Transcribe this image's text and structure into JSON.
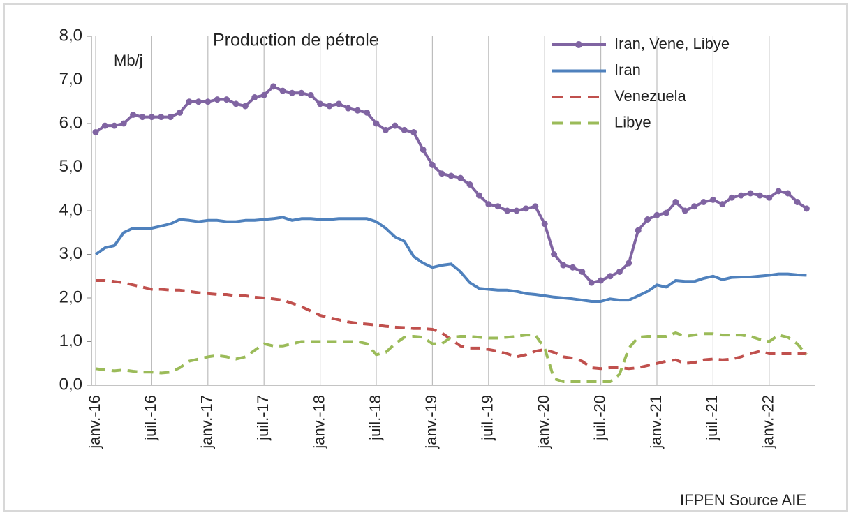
{
  "chart_data": {
    "type": "line",
    "title": "Production de pétrole",
    "y_label": "Mb/j",
    "source": "IFPEN Source AIE",
    "categories": [
      "janv.-16",
      null,
      null,
      null,
      null,
      null,
      "juil.-16",
      null,
      null,
      null,
      null,
      null,
      "janv.-17",
      null,
      null,
      null,
      null,
      null,
      "juil.-17",
      null,
      null,
      null,
      null,
      null,
      "janv.-18",
      null,
      null,
      null,
      null,
      null,
      "juil.-18",
      null,
      null,
      null,
      null,
      null,
      "janv.-19",
      null,
      null,
      null,
      null,
      null,
      "juil.-19",
      null,
      null,
      null,
      null,
      null,
      "janv.-20",
      null,
      null,
      null,
      null,
      null,
      "juil.-20",
      null,
      null,
      null,
      null,
      null,
      "janv.-21",
      null,
      null,
      null,
      null,
      null,
      "juil.-21",
      null,
      null,
      null,
      null,
      null,
      "janv.-22",
      null,
      null,
      null,
      null
    ],
    "ylim": [
      0,
      8
    ],
    "yticks": [
      {
        "value": 0,
        "label": "0,0"
      },
      {
        "value": 1,
        "label": "1,0"
      },
      {
        "value": 2,
        "label": "2,0"
      },
      {
        "value": 3,
        "label": "3,0"
      },
      {
        "value": 4,
        "label": "4,0"
      },
      {
        "value": 5,
        "label": "5,0"
      },
      {
        "value": 6,
        "label": "6,0"
      },
      {
        "value": 7,
        "label": "7,0"
      },
      {
        "value": 8,
        "label": "8,0"
      }
    ],
    "grid": "x",
    "legend": "top-right",
    "series": [
      {
        "name": "Iran, Vene, Libye",
        "color": "#8064a2",
        "marker": "circle",
        "style": "solid",
        "values": [
          5.8,
          5.95,
          5.95,
          6.0,
          6.2,
          6.15,
          6.15,
          6.15,
          6.15,
          6.25,
          6.5,
          6.5,
          6.5,
          6.55,
          6.55,
          6.45,
          6.4,
          6.6,
          6.65,
          6.85,
          6.75,
          6.7,
          6.7,
          6.65,
          6.45,
          6.4,
          6.45,
          6.35,
          6.3,
          6.25,
          6.0,
          5.85,
          5.95,
          5.85,
          5.8,
          5.4,
          5.05,
          4.85,
          4.8,
          4.75,
          4.6,
          4.35,
          4.15,
          4.1,
          4.0,
          4.0,
          4.05,
          4.1,
          3.7,
          3.0,
          2.75,
          2.7,
          2.6,
          2.35,
          2.4,
          2.5,
          2.6,
          2.8,
          3.55,
          3.8,
          3.9,
          3.95,
          4.2,
          4.0,
          4.1,
          4.2,
          4.25,
          4.15,
          4.3,
          4.35,
          4.4,
          4.35,
          4.3,
          4.45,
          4.4,
          4.2,
          4.05
        ]
      },
      {
        "name": "Iran",
        "color": "#4f81bd",
        "style": "solid",
        "values": [
          3.0,
          3.15,
          3.2,
          3.5,
          3.6,
          3.6,
          3.6,
          3.65,
          3.7,
          3.8,
          3.78,
          3.75,
          3.78,
          3.78,
          3.75,
          3.75,
          3.78,
          3.78,
          3.8,
          3.82,
          3.85,
          3.78,
          3.82,
          3.82,
          3.8,
          3.8,
          3.82,
          3.82,
          3.82,
          3.82,
          3.75,
          3.6,
          3.4,
          3.3,
          2.95,
          2.8,
          2.7,
          2.75,
          2.78,
          2.6,
          2.35,
          2.22,
          2.2,
          2.18,
          2.18,
          2.15,
          2.1,
          2.08,
          2.05,
          2.02,
          2.0,
          1.98,
          1.95,
          1.92,
          1.92,
          1.98,
          1.95,
          1.95,
          2.05,
          2.15,
          2.3,
          2.25,
          2.4,
          2.38,
          2.38,
          2.45,
          2.5,
          2.42,
          2.47,
          2.48,
          2.48,
          2.5,
          2.52,
          2.55,
          2.55,
          2.53,
          2.52
        ]
      },
      {
        "name": "Venezuela",
        "color": "#c0504d",
        "style": "dashed",
        "values": [
          2.4,
          2.4,
          2.38,
          2.35,
          2.3,
          2.25,
          2.2,
          2.2,
          2.18,
          2.18,
          2.15,
          2.12,
          2.1,
          2.08,
          2.08,
          2.05,
          2.05,
          2.02,
          2.0,
          1.98,
          1.95,
          1.88,
          1.8,
          1.7,
          1.6,
          1.55,
          1.5,
          1.45,
          1.42,
          1.4,
          1.38,
          1.35,
          1.33,
          1.32,
          1.3,
          1.3,
          1.28,
          1.2,
          1.05,
          0.9,
          0.85,
          0.85,
          0.82,
          0.78,
          0.72,
          0.65,
          0.7,
          0.78,
          0.82,
          0.75,
          0.65,
          0.62,
          0.55,
          0.4,
          0.38,
          0.4,
          0.4,
          0.38,
          0.4,
          0.45,
          0.5,
          0.55,
          0.58,
          0.5,
          0.52,
          0.58,
          0.6,
          0.58,
          0.6,
          0.65,
          0.72,
          0.78,
          0.72,
          0.72,
          0.72,
          0.72,
          0.72
        ]
      },
      {
        "name": "Libye",
        "color": "#9bbb59",
        "style": "dashed",
        "values": [
          0.38,
          0.35,
          0.33,
          0.35,
          0.32,
          0.3,
          0.3,
          0.28,
          0.3,
          0.4,
          0.55,
          0.6,
          0.65,
          0.68,
          0.65,
          0.6,
          0.65,
          0.8,
          0.95,
          0.9,
          0.9,
          0.95,
          1.0,
          1.0,
          1.0,
          1.0,
          1.0,
          1.0,
          1.0,
          0.95,
          0.7,
          0.75,
          0.95,
          1.1,
          1.12,
          1.1,
          0.95,
          0.95,
          1.1,
          1.12,
          1.12,
          1.1,
          1.08,
          1.08,
          1.1,
          1.12,
          1.15,
          1.15,
          0.85,
          0.15,
          0.08,
          0.08,
          0.08,
          0.08,
          0.08,
          0.08,
          0.25,
          0.85,
          1.1,
          1.12,
          1.12,
          1.12,
          1.2,
          1.12,
          1.15,
          1.18,
          1.18,
          1.15,
          1.15,
          1.15,
          1.12,
          1.05,
          1.0,
          1.15,
          1.1,
          0.95,
          0.7
        ]
      }
    ]
  }
}
